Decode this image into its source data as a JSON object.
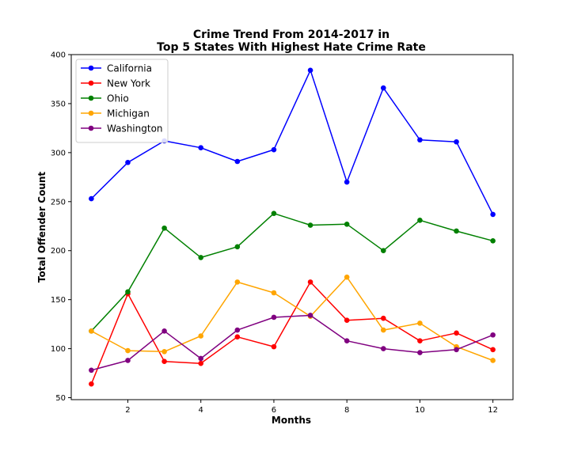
{
  "chart_data": {
    "type": "line",
    "title_line1": "Crime Trend From 2014-2017 in",
    "title_line2": "Top 5 States With Highest Hate Crime Rate",
    "xlabel": "Months",
    "ylabel": "Total Offender Count",
    "x": [
      1,
      2,
      3,
      4,
      5,
      6,
      7,
      8,
      9,
      10,
      11,
      12
    ],
    "xlim": [
      0.45,
      12.55
    ],
    "ylim": [
      48,
      400
    ],
    "x_ticks": [
      2,
      4,
      6,
      8,
      10,
      12
    ],
    "y_ticks": [
      50,
      100,
      150,
      200,
      250,
      300,
      350,
      400
    ],
    "grid": false,
    "legend_position": "top-left",
    "series": [
      {
        "name": "California",
        "color": "#0000ff",
        "values": [
          253,
          290,
          312,
          305,
          291,
          303,
          384,
          270,
          366,
          313,
          311,
          237
        ]
      },
      {
        "name": "New York",
        "color": "#ff0000",
        "values": [
          64,
          156,
          87,
          85,
          112,
          102,
          168,
          129,
          131,
          108,
          116,
          99
        ]
      },
      {
        "name": "Ohio",
        "color": "#008000",
        "values": [
          118,
          158,
          223,
          193,
          204,
          238,
          226,
          227,
          200,
          231,
          220,
          210
        ]
      },
      {
        "name": "Michigan",
        "color": "#ffa500",
        "values": [
          118,
          98,
          97,
          113,
          168,
          157,
          133,
          173,
          119,
          126,
          102,
          88
        ]
      },
      {
        "name": "Washington",
        "color": "#800080",
        "values": [
          78,
          88,
          118,
          90,
          119,
          132,
          134,
          108,
          100,
          96,
          99,
          114
        ]
      }
    ]
  }
}
